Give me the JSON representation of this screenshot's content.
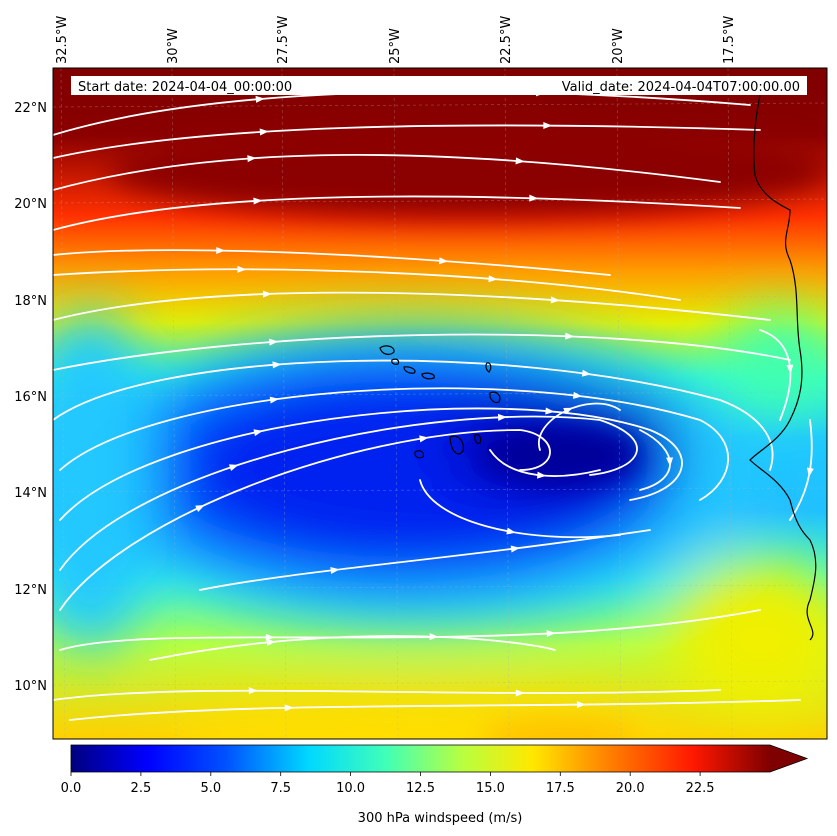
{
  "header": {
    "start_date": "Start date: 2024-04-04_00:00:00",
    "valid_date": "Valid_date: 2024-04-04T07:00:00.00"
  },
  "axes": {
    "lon_ticks": [
      "32.5°W",
      "30°W",
      "27.5°W",
      "25°W",
      "22.5°W",
      "20°W",
      "17.5°W"
    ],
    "lat_ticks": [
      "22°N",
      "20°N",
      "18°N",
      "16°N",
      "14°N",
      "12°N",
      "10°N"
    ]
  },
  "colorbar": {
    "label": "300 hPa windspeed (m/s)",
    "ticks": [
      "0.0",
      "2.5",
      "5.0",
      "7.5",
      "10.0",
      "12.5",
      "15.0",
      "17.5",
      "20.0",
      "22.5"
    ],
    "tick_values": [
      0,
      2.5,
      5,
      7.5,
      10,
      12.5,
      15,
      17.5,
      20,
      22.5
    ],
    "min": 0,
    "max": 25,
    "extend": "max",
    "colormap": "jet"
  },
  "field": {
    "variable": "300 hPa windspeed",
    "units": "m/s",
    "circulation_center_speed": 2,
    "northern_jet_speed": 25,
    "streamline_color": "#ffffff",
    "coastline_color": "#000000"
  }
}
